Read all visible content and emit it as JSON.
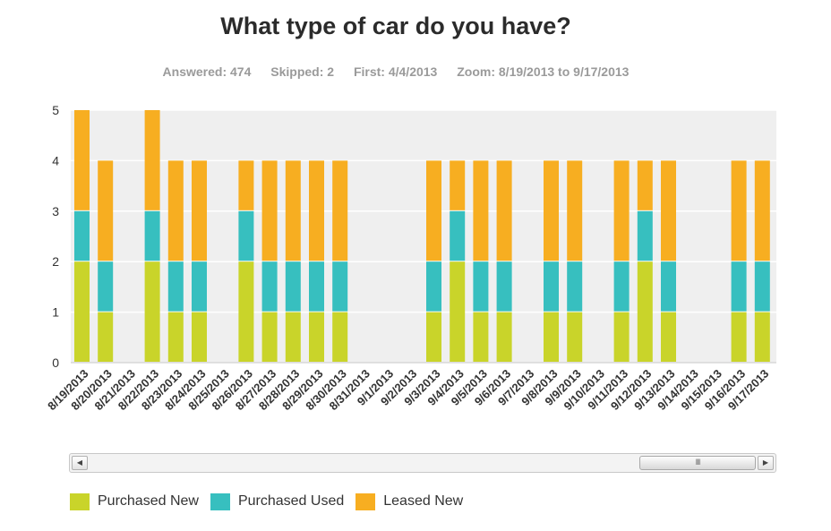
{
  "chart_data": {
    "type": "bar",
    "stacked": true,
    "title": "What type of car do you have?",
    "categories": [
      "8/19/2013",
      "8/20/2013",
      "8/21/2013",
      "8/22/2013",
      "8/23/2013",
      "8/24/2013",
      "8/25/2013",
      "8/26/2013",
      "8/27/2013",
      "8/28/2013",
      "8/29/2013",
      "8/30/2013",
      "8/31/2013",
      "9/1/2013",
      "9/2/2013",
      "9/3/2013",
      "9/4/2013",
      "9/5/2013",
      "9/6/2013",
      "9/7/2013",
      "9/8/2013",
      "9/9/2013",
      "9/10/2013",
      "9/11/2013",
      "9/12/2013",
      "9/13/2013",
      "9/14/2013",
      "9/15/2013",
      "9/16/2013",
      "9/17/2013"
    ],
    "series": [
      {
        "name": "Purchased New",
        "color": "#c9d42a",
        "values": [
          2,
          1,
          0,
          2,
          1,
          1,
          0,
          2,
          1,
          1,
          1,
          1,
          0,
          0,
          0,
          1,
          2,
          1,
          1,
          0,
          1,
          1,
          0,
          1,
          2,
          1,
          0,
          0,
          1,
          1
        ]
      },
      {
        "name": "Purchased Used",
        "color": "#37bfbf",
        "values": [
          1,
          1,
          0,
          1,
          1,
          1,
          0,
          1,
          1,
          1,
          1,
          1,
          0,
          0,
          0,
          1,
          1,
          1,
          1,
          0,
          1,
          1,
          0,
          1,
          1,
          1,
          0,
          0,
          1,
          1
        ]
      },
      {
        "name": "Leased New",
        "color": "#f7ae21",
        "values": [
          2,
          2,
          0,
          2,
          2,
          2,
          0,
          1,
          2,
          2,
          2,
          2,
          0,
          0,
          0,
          2,
          1,
          2,
          2,
          0,
          2,
          2,
          0,
          2,
          1,
          2,
          0,
          0,
          2,
          2
        ]
      }
    ],
    "ylim": [
      0,
      5
    ],
    "yticks": [
      "0",
      "1",
      "2",
      "3",
      "4",
      "5"
    ],
    "grid": true,
    "legend_position": "bottom-left",
    "plot_background": "#efefef"
  },
  "stats": {
    "answered": "Answered: 474",
    "skipped": "Skipped: 2",
    "first": "First: 4/4/2013",
    "zoom": "Zoom: 8/19/2013 to 9/17/2013"
  },
  "scrollbar": {
    "left_arrow_icon": "triangle-left-icon",
    "right_arrow_icon": "triangle-right-icon",
    "thumb_grip": "III"
  }
}
